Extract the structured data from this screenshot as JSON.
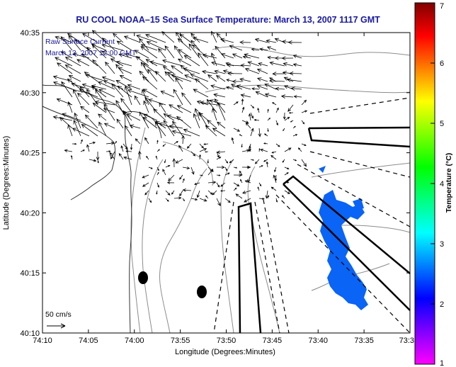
{
  "title": "RU COOL  NOAA–15  Sea Surface Temperature:  March 13, 2007 1117 GMT",
  "inset": {
    "line1": "Raw Surface Current",
    "line2": "March 13, 2007 12:00 GMT",
    "scale_label": "50 cm/s"
  },
  "x_axis": {
    "label": "Longitude (Degrees:Minutes)",
    "ticks": [
      "74:10",
      "74:05",
      "74:00",
      "73:55",
      "73:50",
      "73:45",
      "73:40",
      "73:35",
      "73:3"
    ]
  },
  "y_axis": {
    "label": "Latitude (Degrees:Minutes)",
    "ticks": [
      "40:10",
      "40:15",
      "40:20",
      "40:25",
      "40:30",
      "40:35"
    ]
  },
  "colorbar": {
    "label": "Temperature (°C)",
    "ticks": [
      "1",
      "2",
      "3",
      "4",
      "5",
      "6",
      "7"
    ],
    "min": 1,
    "max": 7,
    "colors": [
      "#ff00ff",
      "#8000ff",
      "#0000ff",
      "#0080ff",
      "#00ffff",
      "#00ff80",
      "#00ff00",
      "#80ff00",
      "#ffff00",
      "#ff8000",
      "#ff0000",
      "#800000"
    ]
  },
  "map": {
    "extent": {
      "lon_west": -74.1667,
      "lon_east": -73.5,
      "lat_south": 40.1667,
      "lat_north": 40.5833
    },
    "land_color": "#ffffff",
    "sst_patch_color": "#0a64f5"
  }
}
